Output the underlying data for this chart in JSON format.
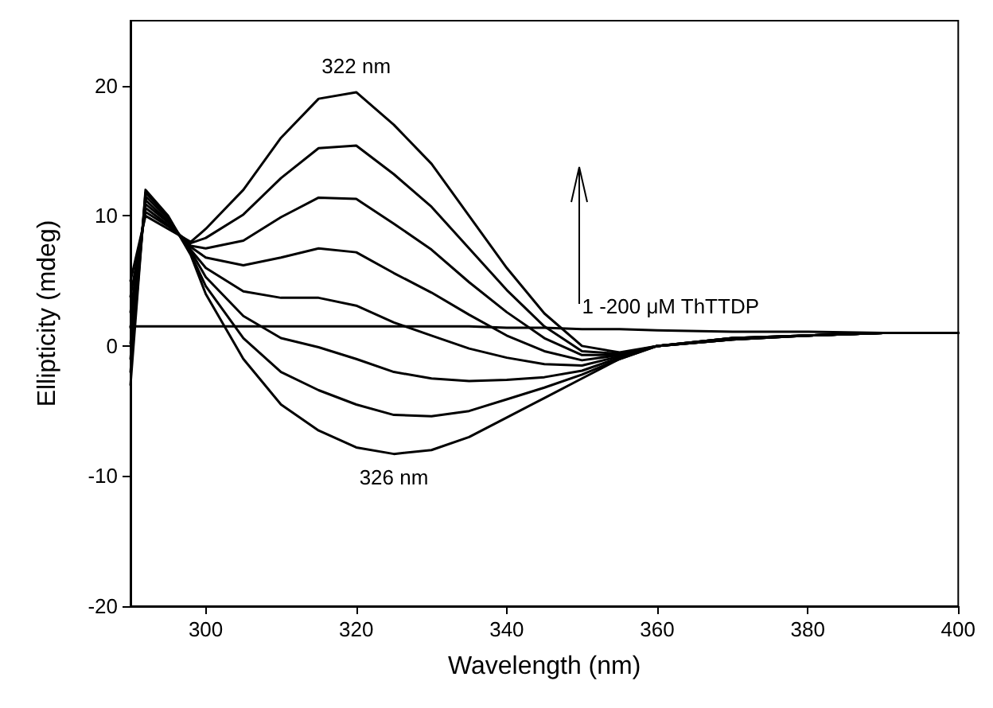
{
  "chart_data": {
    "type": "line",
    "xlabel": "Wavelength (nm)",
    "ylabel": "Ellipticity (mdeg)",
    "x": [
      290,
      292,
      295,
      298,
      300,
      305,
      310,
      315,
      320,
      325,
      330,
      335,
      340,
      345,
      350,
      355,
      360,
      370,
      380,
      390,
      400
    ],
    "series": [
      {
        "color": "#000000",
        "values": [
          5,
          10,
          9,
          8,
          9,
          12,
          16,
          19,
          19.5,
          17,
          14,
          10,
          6,
          2.5,
          0,
          -0.5,
          0,
          0.6,
          0.8,
          1,
          1
        ]
      },
      {
        "color": "#000000",
        "values": [
          3.8,
          10.3,
          9.2,
          7.9,
          8.3,
          10.1,
          12.9,
          15.2,
          15.4,
          13.2,
          10.7,
          7.5,
          4.3,
          1.5,
          -0.4,
          -0.6,
          0,
          0.6,
          0.8,
          1,
          1
        ]
      },
      {
        "color": "#000000",
        "values": [
          2.6,
          10.6,
          9.3,
          7.7,
          7.5,
          8.1,
          9.9,
          11.4,
          11.3,
          9.4,
          7.4,
          4.9,
          2.6,
          0.6,
          -0.7,
          -0.7,
          0,
          0.6,
          0.8,
          1,
          1
        ]
      },
      {
        "color": "#000000",
        "values": [
          1.4,
          10.9,
          9.5,
          7.6,
          6.8,
          6.2,
          6.8,
          7.5,
          7.2,
          5.6,
          4.1,
          2.4,
          0.8,
          -0.4,
          -1.1,
          -0.7,
          0,
          0.6,
          0.8,
          1,
          1
        ]
      },
      {
        "color": "#000000",
        "values": [
          0.2,
          11.2,
          9.6,
          7.4,
          6,
          4.2,
          3.7,
          3.7,
          3.1,
          1.8,
          0.8,
          -0.2,
          -0.9,
          -1.4,
          -1.5,
          -0.8,
          0,
          0.5,
          0.8,
          1,
          1
        ]
      },
      {
        "color": "#000000",
        "values": [
          -1,
          11.5,
          9.8,
          7.3,
          5.3,
          2.3,
          0.6,
          -0.1,
          -1,
          -2,
          -2.5,
          -2.7,
          -2.6,
          -2.4,
          -1.9,
          -0.9,
          0,
          0.5,
          0.8,
          1,
          1
        ]
      },
      {
        "color": "#000000",
        "values": [
          -2,
          11.8,
          9.9,
          7.1,
          4.6,
          0.6,
          -2,
          -3.4,
          -4.5,
          -5.3,
          -5.4,
          -5,
          -4.1,
          -3.2,
          -2.2,
          -1,
          0,
          0.5,
          0.8,
          1,
          1
        ]
      },
      {
        "color": "#000000",
        "values": [
          -3,
          12,
          10,
          7,
          4,
          -1,
          -4.5,
          -6.5,
          -7.8,
          -8.3,
          -8,
          -7,
          -5.5,
          -4,
          -2.5,
          -1,
          0,
          0.5,
          0.8,
          1,
          1
        ]
      },
      {
        "color": "#000000",
        "values": [
          1.5,
          1.5,
          1.5,
          1.5,
          1.5,
          1.5,
          1.5,
          1.5,
          1.5,
          1.5,
          1.5,
          1.5,
          1.4,
          1.4,
          1.3,
          1.3,
          1.2,
          1.1,
          1.1,
          1,
          1
        ]
      }
    ],
    "xlim": [
      290,
      400
    ],
    "xticks": [
      300,
      320,
      340,
      360,
      380,
      400
    ],
    "ylim": [
      -20,
      25
    ],
    "yticks": [
      -20,
      -10,
      0,
      10,
      20
    ],
    "grid": false,
    "marker": "none",
    "line_style": "solid",
    "annotations": [
      {
        "text": "322 nm",
        "x": 320,
        "y": 19.5
      },
      {
        "text": "326 nm",
        "x": 325,
        "y": -8.3
      },
      {
        "text": "1 -200 μM ThTTDP",
        "x": 350,
        "y": 1.5
      }
    ]
  }
}
